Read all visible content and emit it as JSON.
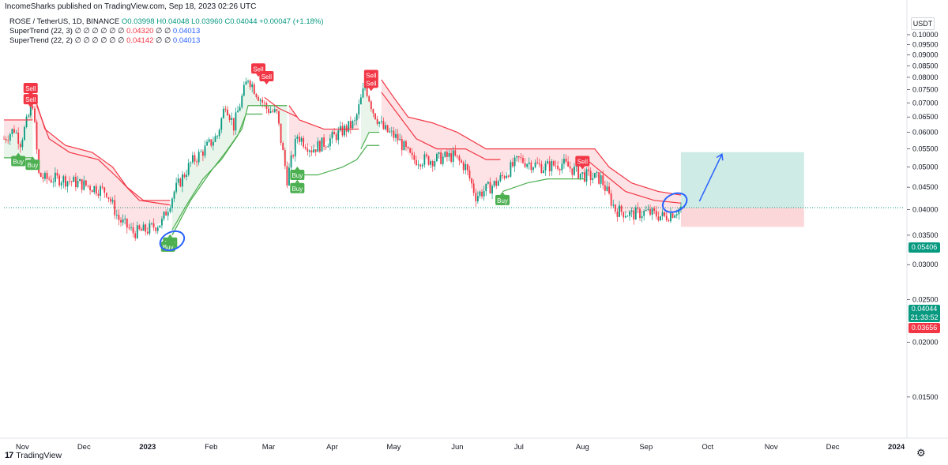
{
  "header": {
    "publisher": "IncomeSharks published on TradingView.com, Sep 18, 2023 02:26 UTC",
    "symbol": "ROSE / TetherUS, 1D, BINANCE",
    "ohlc": {
      "o": "O0.03998",
      "h": "H0.04048",
      "l": "L0.03960",
      "c": "C0.04044",
      "chg": "+0.00047 (+1.18%)"
    },
    "indicators": [
      {
        "name": "SuperTrend (22, 3)",
        "flags": "∅ ∅ ∅ ∅ ∅ ∅",
        "up": "0.04320",
        "down": "0.04013"
      },
      {
        "name": "SuperTrend (22, 2)",
        "flags": "∅ ∅ ∅ ∅ ∅ ∅",
        "up": "0.04142",
        "down": "0.04013"
      }
    ]
  },
  "axis": {
    "currency": "USDT",
    "price_tags": {
      "target": "0.05406",
      "current": "0.04044",
      "countdown": "21:33:52",
      "stop": "0.03656"
    }
  },
  "footer": {
    "brand": "TradingView"
  },
  "colors": {
    "up": "#089981",
    "down": "#f23645",
    "st_red": "#f23645",
    "st_green": "#4caf50",
    "annotation": "#2962ff"
  },
  "chart_data": {
    "type": "candlestick",
    "title": "ROSE / TetherUS, 1D, BINANCE",
    "x_range": [
      "2022-10-23",
      "2024-01-05"
    ],
    "ylim": [
      0.0125,
      0.1025
    ],
    "y_scale": "log",
    "y_ticks": [
      "0.10000",
      "0.09500",
      "0.09000",
      "0.08500",
      "0.08000",
      "0.07500",
      "0.07000",
      "0.06500",
      "0.06000",
      "0.05500",
      "0.05000",
      "0.04500",
      "0.04000",
      "0.03500",
      "0.03000",
      "0.02500",
      "0.02000",
      "0.01500"
    ],
    "x_ticks": [
      "Nov",
      "Dec",
      "2023",
      "Feb",
      "Mar",
      "Apr",
      "May",
      "Jun",
      "Jul",
      "Aug",
      "Sep",
      "Oct",
      "Nov",
      "Dec",
      "2024"
    ],
    "price_path": [
      [
        "2022-10-23",
        0.058
      ],
      [
        "2022-10-28",
        0.061
      ],
      [
        "2022-10-31",
        0.057
      ],
      [
        "2022-11-03",
        0.063
      ],
      [
        "2022-11-06",
        0.07
      ],
      [
        "2022-11-09",
        0.048
      ],
      [
        "2022-11-12",
        0.047
      ],
      [
        "2022-11-20",
        0.047
      ],
      [
        "2022-11-28",
        0.046
      ],
      [
        "2022-12-05",
        0.045
      ],
      [
        "2022-12-12",
        0.044
      ],
      [
        "2022-12-18",
        0.038
      ],
      [
        "2022-12-25",
        0.0355
      ],
      [
        "2023-01-01",
        0.036
      ],
      [
        "2023-01-08",
        0.0375
      ],
      [
        "2023-01-14",
        0.044
      ],
      [
        "2023-01-22",
        0.051
      ],
      [
        "2023-01-29",
        0.055
      ],
      [
        "2023-02-04",
        0.059
      ],
      [
        "2023-02-08",
        0.07
      ],
      [
        "2023-02-12",
        0.062
      ],
      [
        "2023-02-16",
        0.072
      ],
      [
        "2023-02-19",
        0.08
      ],
      [
        "2023-02-23",
        0.074
      ],
      [
        "2023-02-28",
        0.068
      ],
      [
        "2023-03-05",
        0.066
      ],
      [
        "2023-03-10",
        0.047
      ],
      [
        "2023-03-15",
        0.059
      ],
      [
        "2023-03-22",
        0.055
      ],
      [
        "2023-03-29",
        0.057
      ],
      [
        "2023-04-05",
        0.06
      ],
      [
        "2023-04-12",
        0.063
      ],
      [
        "2023-04-17",
        0.077
      ],
      [
        "2023-04-21",
        0.067
      ],
      [
        "2023-04-26",
        0.061
      ],
      [
        "2023-05-03",
        0.058
      ],
      [
        "2023-05-10",
        0.052
      ],
      [
        "2023-05-20",
        0.052
      ],
      [
        "2023-05-30",
        0.053
      ],
      [
        "2023-06-05",
        0.05
      ],
      [
        "2023-06-10",
        0.043
      ],
      [
        "2023-06-20",
        0.046
      ],
      [
        "2023-07-01",
        0.052
      ],
      [
        "2023-07-13",
        0.05
      ],
      [
        "2023-07-22",
        0.051
      ],
      [
        "2023-08-01",
        0.048
      ],
      [
        "2023-08-10",
        0.047
      ],
      [
        "2023-08-17",
        0.04
      ],
      [
        "2023-08-25",
        0.039
      ],
      [
        "2023-09-01",
        0.0395
      ],
      [
        "2023-09-10",
        0.0385
      ],
      [
        "2023-09-18",
        0.0404
      ]
    ],
    "supertrend_slow": [
      {
        "trend": "down",
        "points": [
          [
            "2022-10-23",
            0.064
          ],
          [
            "2022-11-06",
            0.064
          ]
        ]
      },
      {
        "trend": "up",
        "points": [
          [
            "2022-10-23",
            0.0525
          ],
          [
            "2022-11-06",
            0.0525
          ]
        ]
      },
      {
        "trend": "down",
        "points": [
          [
            "2022-11-07",
            0.072
          ],
          [
            "2022-11-12",
            0.061
          ],
          [
            "2022-11-22",
            0.056
          ],
          [
            "2022-12-05",
            0.054
          ],
          [
            "2022-12-15",
            0.05
          ],
          [
            "2022-12-22",
            0.045
          ],
          [
            "2022-12-30",
            0.042
          ],
          [
            "2023-01-12",
            0.042
          ]
        ]
      },
      {
        "trend": "up",
        "points": [
          [
            "2023-01-13",
            0.035
          ],
          [
            "2023-01-22",
            0.042
          ],
          [
            "2023-02-01",
            0.049
          ],
          [
            "2023-02-08",
            0.054
          ],
          [
            "2023-02-16",
            0.061
          ],
          [
            "2023-02-19",
            0.069
          ],
          [
            "2023-02-24",
            0.069
          ],
          [
            "2023-03-10",
            0.069
          ]
        ]
      },
      {
        "trend": "down",
        "points": [
          [
            "2023-03-11",
            0.069
          ],
          [
            "2023-03-16",
            0.064
          ],
          [
            "2023-03-28",
            0.061
          ],
          [
            "2023-04-14",
            0.061
          ]
        ]
      },
      {
        "trend": "up",
        "points": [
          [
            "2023-04-15",
            0.055
          ],
          [
            "2023-04-19",
            0.06
          ],
          [
            "2023-04-24",
            0.06
          ]
        ]
      },
      {
        "trend": "down",
        "points": [
          [
            "2023-04-25",
            0.079
          ],
          [
            "2023-05-01",
            0.072
          ],
          [
            "2023-05-08",
            0.065
          ],
          [
            "2023-05-20",
            0.063
          ],
          [
            "2023-06-01",
            0.06
          ],
          [
            "2023-06-15",
            0.055
          ],
          [
            "2023-07-20",
            0.055
          ],
          [
            "2023-08-07",
            0.055
          ],
          [
            "2023-08-14",
            0.05
          ],
          [
            "2023-08-25",
            0.046
          ],
          [
            "2023-09-07",
            0.044
          ],
          [
            "2023-09-18",
            0.0432
          ]
        ]
      }
    ],
    "supertrend_fast": [
      {
        "trend": "down",
        "points": [
          [
            "2022-11-08",
            0.069
          ],
          [
            "2022-11-14",
            0.058
          ],
          [
            "2022-11-24",
            0.054
          ],
          [
            "2022-12-08",
            0.052
          ],
          [
            "2022-12-18",
            0.047
          ],
          [
            "2022-12-28",
            0.042
          ],
          [
            "2023-01-12",
            0.041
          ]
        ]
      },
      {
        "trend": "up",
        "points": [
          [
            "2023-01-13",
            0.036
          ],
          [
            "2023-01-20",
            0.041
          ],
          [
            "2023-01-28",
            0.047
          ],
          [
            "2023-02-06",
            0.052
          ],
          [
            "2023-02-14",
            0.059
          ],
          [
            "2023-02-18",
            0.066
          ],
          [
            "2023-02-26",
            0.066
          ]
        ]
      },
      {
        "trend": "down",
        "points": [
          [
            "2023-02-27",
            0.072
          ],
          [
            "2023-03-06",
            0.068
          ],
          [
            "2023-03-12",
            0.066
          ],
          [
            "2023-03-15",
            0.065
          ]
        ]
      },
      {
        "trend": "up",
        "points": [
          [
            "2023-03-16",
            0.048
          ],
          [
            "2023-03-25",
            0.048
          ],
          [
            "2023-04-06",
            0.05
          ],
          [
            "2023-04-13",
            0.052
          ],
          [
            "2023-04-18",
            0.056
          ],
          [
            "2023-04-24",
            0.056
          ]
        ]
      },
      {
        "trend": "down",
        "points": [
          [
            "2023-04-25",
            0.074
          ],
          [
            "2023-05-03",
            0.066
          ],
          [
            "2023-05-12",
            0.058
          ],
          [
            "2023-05-22",
            0.055
          ],
          [
            "2023-06-05",
            0.055
          ],
          [
            "2023-06-15",
            0.052
          ],
          [
            "2023-06-22",
            0.052
          ]
        ]
      },
      {
        "trend": "up",
        "points": [
          [
            "2023-06-23",
            0.044
          ],
          [
            "2023-07-05",
            0.046
          ],
          [
            "2023-07-15",
            0.047
          ],
          [
            "2023-08-02",
            0.047
          ]
        ]
      },
      {
        "trend": "down",
        "points": [
          [
            "2023-08-03",
            0.052
          ],
          [
            "2023-08-12",
            0.048
          ],
          [
            "2023-08-22",
            0.044
          ],
          [
            "2023-09-05",
            0.042
          ],
          [
            "2023-09-18",
            0.0414
          ]
        ]
      }
    ],
    "signals": [
      {
        "type": "Sell",
        "date": "2022-11-05",
        "price": 0.0755
      },
      {
        "type": "Sell",
        "date": "2022-11-05",
        "price": 0.0712
      },
      {
        "type": "Buy",
        "date": "2022-10-30",
        "price": 0.0515
      },
      {
        "type": "Buy",
        "date": "2022-11-06",
        "price": 0.0505
      },
      {
        "type": "Sell",
        "date": "2023-02-24",
        "price": 0.0836
      },
      {
        "type": "Sell",
        "date": "2023-02-28",
        "price": 0.0803
      },
      {
        "type": "Buy",
        "date": "2023-03-15",
        "price": 0.0479
      },
      {
        "type": "Buy",
        "date": "2023-03-15",
        "price": 0.0447
      },
      {
        "type": "Sell",
        "date": "2023-04-20",
        "price": 0.0808
      },
      {
        "type": "Sell",
        "date": "2023-04-20",
        "price": 0.0776
      },
      {
        "type": "Buy",
        "date": "2023-06-23",
        "price": 0.042
      },
      {
        "type": "Sell",
        "date": "2023-08-01",
        "price": 0.0515
      },
      {
        "type": "Buy",
        "date": "2023-01-12",
        "price": 0.0336
      },
      {
        "type": "Buy",
        "date": "2023-01-11",
        "price": 0.0329
      }
    ],
    "position": {
      "entry": 0.04044,
      "target": 0.05406,
      "stop": 0.03656,
      "start": "2023-09-18",
      "end": "2023-11-17"
    },
    "annotations": [
      {
        "shape": "ellipse",
        "date": "2023-01-13",
        "price": 0.034
      },
      {
        "shape": "ellipse",
        "date": "2023-09-15",
        "price": 0.0415
      },
      {
        "shape": "arrow",
        "from": [
          "2023-09-27",
          0.0418
        ],
        "to": [
          "2023-10-08",
          0.0535
        ]
      }
    ]
  }
}
